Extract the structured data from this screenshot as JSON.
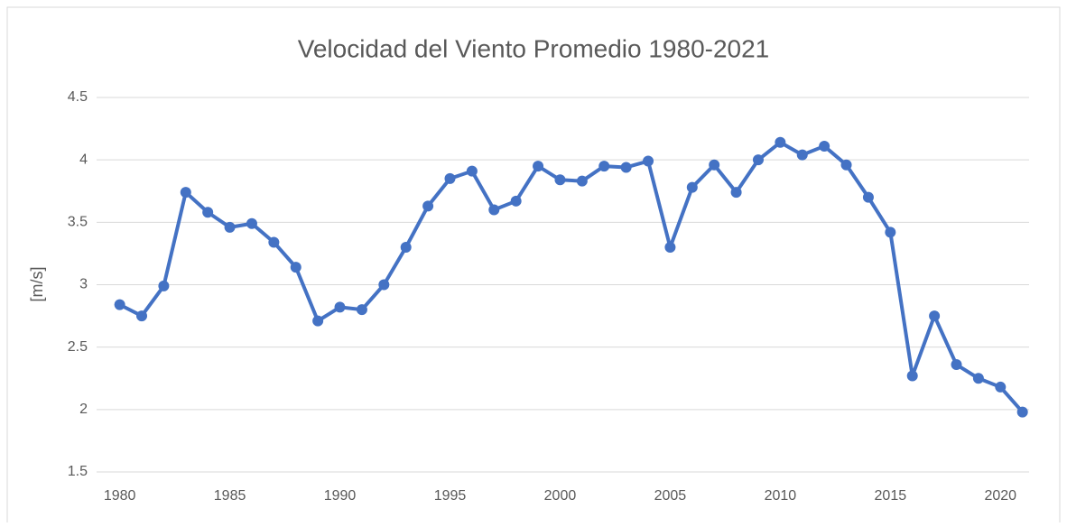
{
  "chart_data": {
    "type": "line",
    "title": "Velocidad del Viento Promedio 1980-2021",
    "ylabel": "[m/s]",
    "x": [
      1980,
      1981,
      1982,
      1983,
      1984,
      1985,
      1986,
      1987,
      1988,
      1989,
      1990,
      1991,
      1992,
      1993,
      1994,
      1995,
      1996,
      1997,
      1998,
      1999,
      2000,
      2001,
      2002,
      2003,
      2004,
      2005,
      2006,
      2007,
      2008,
      2009,
      2010,
      2011,
      2012,
      2013,
      2014,
      2015,
      2016,
      2017,
      2018,
      2019,
      2020,
      2021
    ],
    "series": [
      {
        "name": "Velocidad",
        "color": "#4472c4",
        "values": [
          2.84,
          2.75,
          2.99,
          3.74,
          3.58,
          3.46,
          3.49,
          3.34,
          3.14,
          2.71,
          2.82,
          2.8,
          3.0,
          3.3,
          3.63,
          3.85,
          3.91,
          3.6,
          3.67,
          3.95,
          3.84,
          3.83,
          3.95,
          3.94,
          3.99,
          3.3,
          3.78,
          3.96,
          3.74,
          4.0,
          4.14,
          4.04,
          4.11,
          3.96,
          3.7,
          3.42,
          2.27,
          2.75,
          2.36,
          2.25,
          2.18,
          1.98
        ]
      }
    ],
    "xlim": [
      1978.95,
      2021.3
    ],
    "xticks": [
      1980,
      1985,
      1990,
      1995,
      2000,
      2005,
      2010,
      2015,
      2020
    ],
    "ylim": [
      1.5,
      4.5
    ],
    "yticks": [
      1.5,
      {
        "value": 2,
        "label": "2"
      },
      2.5,
      {
        "value": 3,
        "label": "3"
      },
      3.5,
      {
        "value": 4,
        "label": "4"
      },
      4.5
    ],
    "grid": true
  }
}
